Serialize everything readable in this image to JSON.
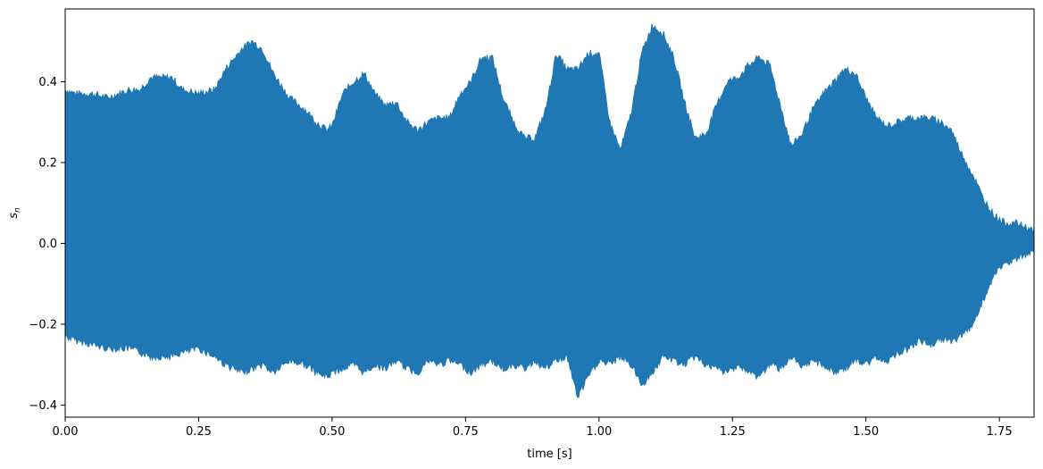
{
  "chart_data": {
    "type": "area",
    "title": "",
    "xlabel": "time [s]",
    "ylabel_main": "s",
    "ylabel_sub": "n",
    "xlim": [
      0.0,
      1.815
    ],
    "ylim": [
      -0.43,
      0.58
    ],
    "x_ticks": [
      0.0,
      0.25,
      0.5,
      0.75,
      1.0,
      1.25,
      1.5,
      1.75
    ],
    "x_tick_labels": [
      "0.00",
      "0.25",
      "0.50",
      "0.75",
      "1.00",
      "1.25",
      "1.50",
      "1.75"
    ],
    "y_ticks": [
      -0.4,
      -0.2,
      0.0,
      0.2,
      0.4
    ],
    "y_tick_labels": [
      "−0.4",
      "−0.2",
      "0.0",
      "0.2",
      "0.4"
    ],
    "grid": false,
    "colors": {
      "series": "#1f77b4",
      "axes": "#000000",
      "background": "#ffffff"
    },
    "series": [
      {
        "envelope": {
          "t": [
            0.0,
            0.02,
            0.05,
            0.08,
            0.1,
            0.12,
            0.14,
            0.16,
            0.18,
            0.2,
            0.22,
            0.25,
            0.28,
            0.3,
            0.33,
            0.35,
            0.37,
            0.39,
            0.42,
            0.45,
            0.47,
            0.49,
            0.5,
            0.52,
            0.54,
            0.56,
            0.58,
            0.6,
            0.62,
            0.64,
            0.66,
            0.68,
            0.7,
            0.72,
            0.74,
            0.76,
            0.78,
            0.8,
            0.82,
            0.84,
            0.86,
            0.88,
            0.9,
            0.92,
            0.94,
            0.96,
            0.98,
            1.0,
            1.02,
            1.04,
            1.06,
            1.08,
            1.1,
            1.12,
            1.14,
            1.16,
            1.18,
            1.2,
            1.22,
            1.24,
            1.26,
            1.28,
            1.3,
            1.32,
            1.34,
            1.36,
            1.38,
            1.4,
            1.42,
            1.44,
            1.46,
            1.48,
            1.5,
            1.52,
            1.54,
            1.56,
            1.58,
            1.6,
            1.62,
            1.64,
            1.66,
            1.68,
            1.7,
            1.72,
            1.74,
            1.76,
            1.78,
            1.8,
            1.815
          ],
          "upper": [
            0.38,
            0.37,
            0.37,
            0.36,
            0.37,
            0.38,
            0.38,
            0.41,
            0.41,
            0.41,
            0.38,
            0.37,
            0.38,
            0.43,
            0.48,
            0.5,
            0.48,
            0.42,
            0.36,
            0.33,
            0.3,
            0.28,
            0.29,
            0.37,
            0.4,
            0.42,
            0.37,
            0.34,
            0.35,
            0.3,
            0.28,
            0.3,
            0.31,
            0.31,
            0.37,
            0.4,
            0.46,
            0.46,
            0.36,
            0.3,
            0.26,
            0.26,
            0.33,
            0.47,
            0.43,
            0.43,
            0.47,
            0.47,
            0.3,
            0.23,
            0.32,
            0.47,
            0.54,
            0.52,
            0.46,
            0.35,
            0.26,
            0.27,
            0.34,
            0.4,
            0.41,
            0.44,
            0.46,
            0.44,
            0.34,
            0.24,
            0.27,
            0.33,
            0.37,
            0.4,
            0.43,
            0.42,
            0.36,
            0.31,
            0.29,
            0.3,
            0.31,
            0.31,
            0.31,
            0.3,
            0.28,
            0.22,
            0.17,
            0.11,
            0.07,
            0.05,
            0.05,
            0.04,
            0.03
          ],
          "lower": [
            -0.23,
            -0.24,
            -0.25,
            -0.26,
            -0.26,
            -0.26,
            -0.27,
            -0.28,
            -0.28,
            -0.28,
            -0.27,
            -0.26,
            -0.28,
            -0.3,
            -0.32,
            -0.31,
            -0.3,
            -0.32,
            -0.29,
            -0.3,
            -0.32,
            -0.33,
            -0.32,
            -0.31,
            -0.3,
            -0.32,
            -0.3,
            -0.31,
            -0.29,
            -0.31,
            -0.32,
            -0.29,
            -0.3,
            -0.29,
            -0.3,
            -0.32,
            -0.3,
            -0.29,
            -0.31,
            -0.3,
            -0.31,
            -0.29,
            -0.31,
            -0.29,
            -0.28,
            -0.38,
            -0.33,
            -0.29,
            -0.3,
            -0.28,
            -0.3,
            -0.35,
            -0.32,
            -0.28,
            -0.29,
            -0.3,
            -0.28,
            -0.3,
            -0.31,
            -0.32,
            -0.3,
            -0.32,
            -0.33,
            -0.3,
            -0.31,
            -0.28,
            -0.31,
            -0.29,
            -0.3,
            -0.32,
            -0.31,
            -0.29,
            -0.3,
            -0.28,
            -0.29,
            -0.27,
            -0.26,
            -0.24,
            -0.25,
            -0.24,
            -0.24,
            -0.23,
            -0.2,
            -0.14,
            -0.08,
            -0.05,
            -0.04,
            -0.03,
            -0.02
          ]
        }
      }
    ]
  }
}
